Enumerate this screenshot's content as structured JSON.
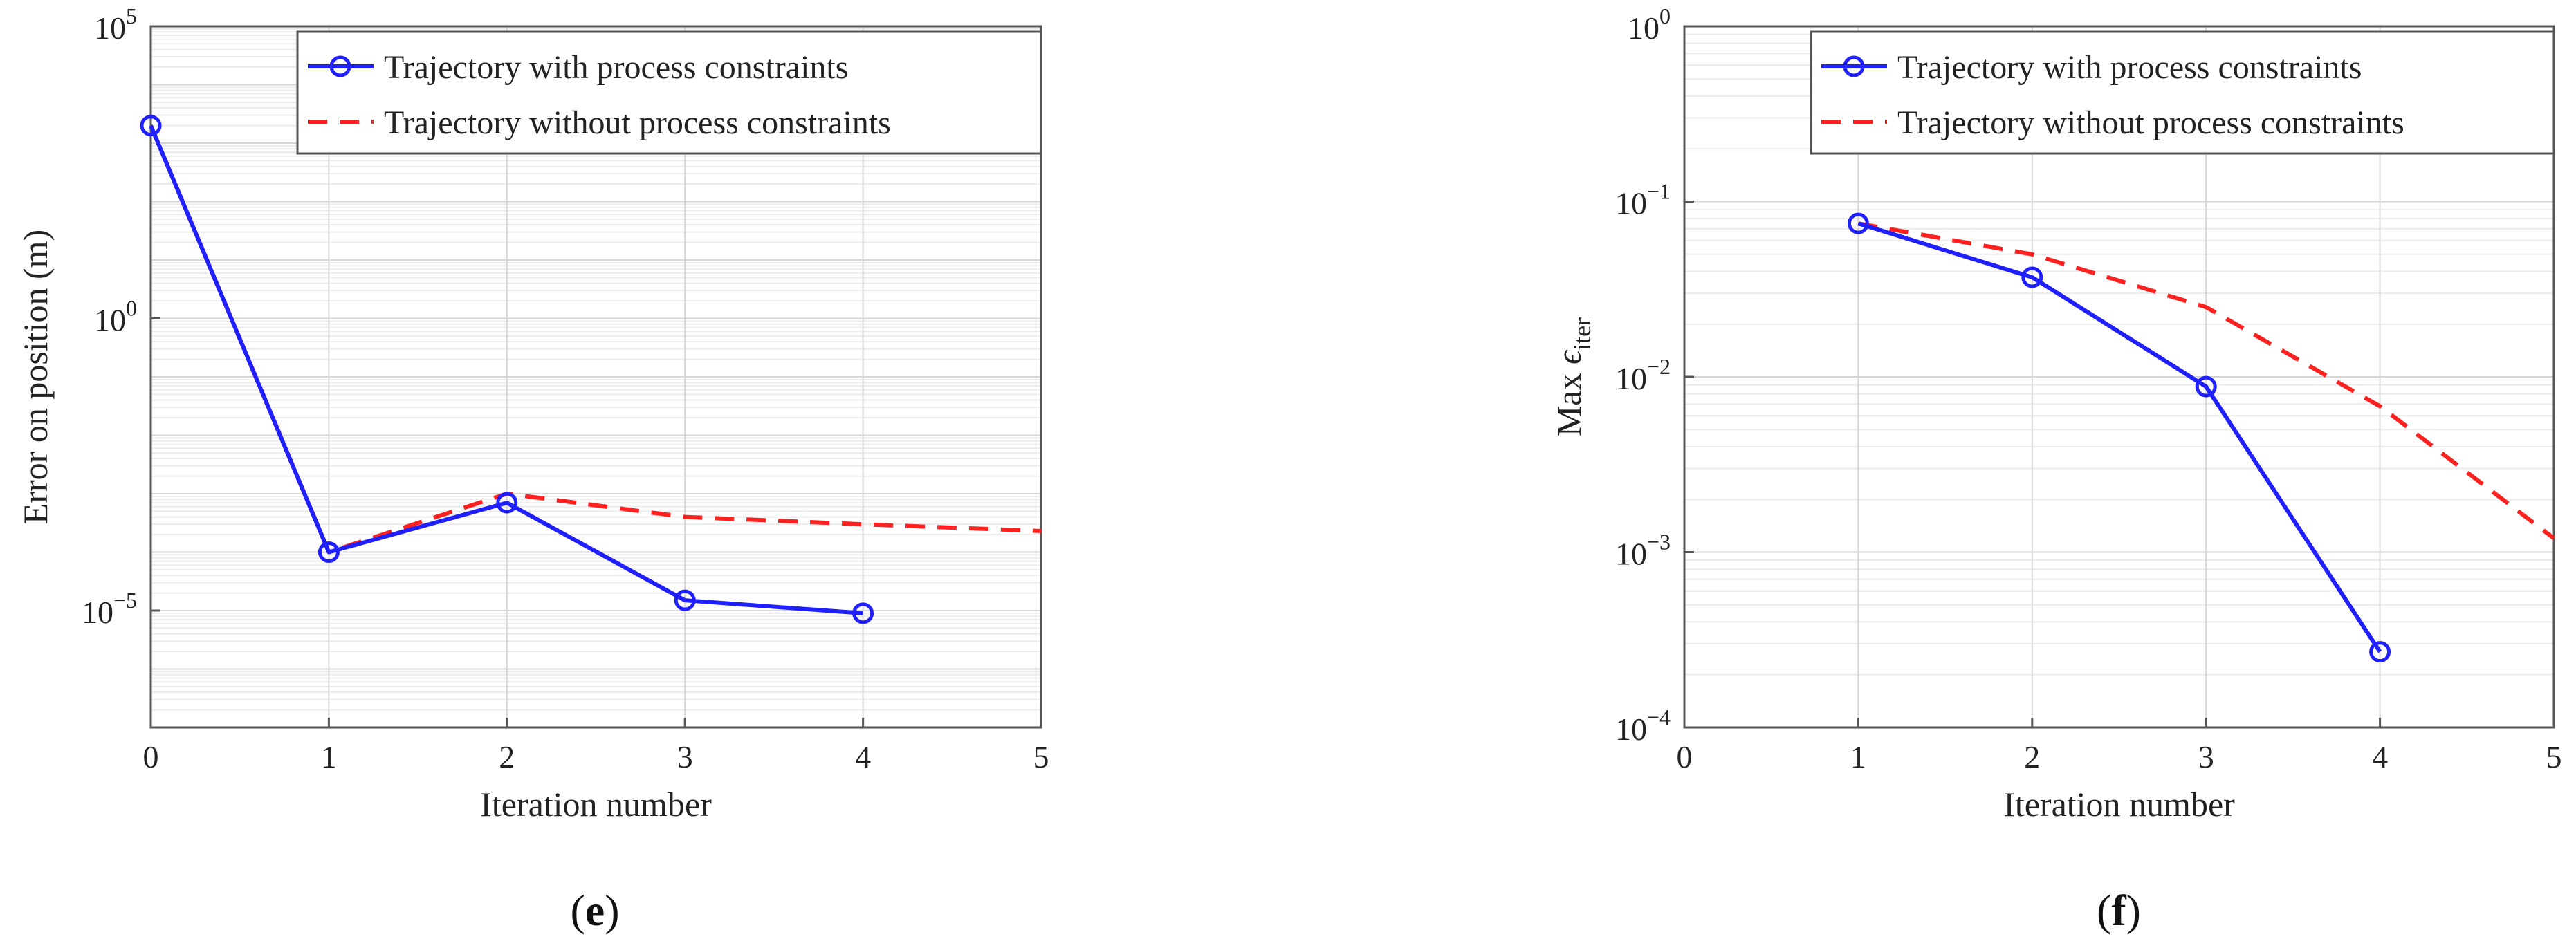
{
  "chart_data": [
    {
      "type": "line",
      "panel_label": "e",
      "xlabel": "Iteration number",
      "ylabel": "Error on position (m)",
      "yscale": "log",
      "xlim": [
        0,
        5
      ],
      "ylim_exp": [
        -7,
        5
      ],
      "x_ticks": [
        "0",
        "1",
        "2",
        "3",
        "4",
        "5"
      ],
      "y_ticks": [
        {
          "exp": 5,
          "base": "10",
          "sup": "5"
        },
        {
          "exp": 0,
          "base": "10",
          "sup": "0"
        },
        {
          "exp": -5,
          "base": "10",
          "sup": "−5"
        }
      ],
      "grid": true,
      "legend_position": "top-right",
      "series": [
        {
          "name": "Trajectory with process constraints",
          "color": "#1f1fff",
          "style": "solid",
          "marker": "circle",
          "x": [
            0,
            1,
            2,
            3,
            4
          ],
          "y": [
            2000,
            0.0001,
            0.0007,
            1.5e-05,
            9e-06
          ]
        },
        {
          "name": "Trajectory without process constraints",
          "color": "#ff2020",
          "style": "dashed",
          "marker": "none",
          "x": [
            0,
            1,
            2,
            3,
            4,
            5
          ],
          "y": [
            2000,
            0.0001,
            0.001,
            0.0004,
            0.0003,
            0.00023
          ]
        }
      ]
    },
    {
      "type": "line",
      "panel_label": "f",
      "xlabel": "Iteration number",
      "ylabel_main": "Max ",
      "ylabel_symbol": "ϵ",
      "ylabel_sub": "iter",
      "yscale": "log",
      "xlim": [
        0,
        5
      ],
      "ylim_exp": [
        -4,
        0
      ],
      "x_ticks": [
        "0",
        "1",
        "2",
        "3",
        "4",
        "5"
      ],
      "y_ticks": [
        {
          "exp": 0,
          "base": "10",
          "sup": "0"
        },
        {
          "exp": -1,
          "base": "10",
          "sup": "−1"
        },
        {
          "exp": -2,
          "base": "10",
          "sup": "−2"
        },
        {
          "exp": -3,
          "base": "10",
          "sup": "−3"
        },
        {
          "exp": -4,
          "base": "10",
          "sup": "−4"
        }
      ],
      "grid": true,
      "legend_position": "top-right",
      "series": [
        {
          "name": "Trajectory with process constraints",
          "color": "#1f1fff",
          "style": "solid",
          "marker": "circle",
          "x": [
            1,
            2,
            3,
            4
          ],
          "y": [
            0.075,
            0.037,
            0.0088,
            0.00027
          ]
        },
        {
          "name": "Trajectory without process constraints",
          "color": "#ff2020",
          "style": "dashed",
          "marker": "none",
          "x": [
            1,
            2,
            3,
            4,
            5
          ],
          "y": [
            0.075,
            0.05,
            0.025,
            0.0068,
            0.0012
          ]
        }
      ]
    }
  ]
}
